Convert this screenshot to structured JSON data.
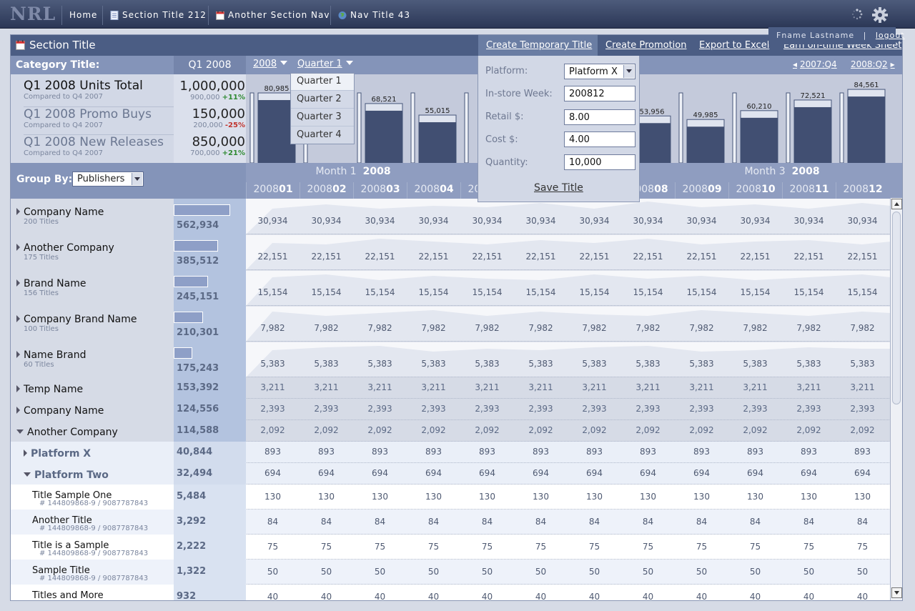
{
  "logo": "NRL",
  "nav": [
    {
      "label": "Home",
      "icon": ""
    },
    {
      "label": "Section Title 212",
      "icon": "document-icon"
    },
    {
      "label": "Another Section Nav",
      "icon": "calendar-icon"
    },
    {
      "label": "Nav Title 43",
      "icon": "globe-icon"
    }
  ],
  "user": {
    "name": "Fname Lastname",
    "separator": "|",
    "logout": "logout"
  },
  "section": {
    "title": "Section Title",
    "actions": [
      "Create Temporary Title",
      "Create Promotion",
      "Export to Excel",
      "Earn on-time Week Sheet"
    ]
  },
  "category": {
    "label": "Category Title:",
    "period": "Q1 2008",
    "year_dd": "2008",
    "quarter_dd": "Quarter 1",
    "prev": "2007:Q4",
    "next": "2008:Q2"
  },
  "quarter_menu": [
    "Quarter 1",
    "Quarter 2",
    "Quarter 3",
    "Quarter 4"
  ],
  "summary": [
    {
      "title": "Q1 2008 Units Total",
      "sub": "Compared to Q4 2007",
      "value": "1,000,000",
      "cmp": "900,000",
      "delta": "+11%",
      "dir": "up"
    },
    {
      "title": "Q1 2008 Promo Buys",
      "sub": "Compared to Q4 2007",
      "value": "150,000",
      "cmp": "200,000",
      "delta": "-25%",
      "dir": "down"
    },
    {
      "title": "Q1 2008 New Releases",
      "sub": "Compared to Q4 2007",
      "value": "850,000",
      "cmp": "700,000",
      "delta": "+21%",
      "dir": "up"
    }
  ],
  "bar_labels": [
    "80,985",
    "68,521",
    "55,015",
    "53,956",
    "49,985",
    "60,210",
    "72,521",
    "84,561"
  ],
  "group": {
    "label": "Group By:",
    "value": "Publishers"
  },
  "months": [
    {
      "name": "Month 1",
      "year": "2008"
    },
    {
      "name": "Month 3",
      "year": "2008"
    }
  ],
  "weeks_prefix": "2008",
  "weeks": [
    "01",
    "02",
    "03",
    "04",
    "05",
    "06",
    "07",
    "08",
    "09",
    "10",
    "11",
    "12"
  ],
  "popup": {
    "platform_label": "Platform:",
    "platform": "Platform X",
    "week_label": "In-store Week:",
    "week": "200812",
    "retail_label": "Retail $:",
    "retail": "8.00",
    "cost_label": "Cost $:",
    "cost": "4.00",
    "qty_label": "Quantity:",
    "qty": "10,000",
    "save": "Save Title"
  },
  "rows": [
    {
      "title": "Company Name",
      "sub": "200 Titles",
      "total": "562,934",
      "val": "30,934",
      "type": "big",
      "bar": 0.9
    },
    {
      "title": "Another Company",
      "sub": "175 Titles",
      "total": "385,512",
      "val": "22,151",
      "type": "big",
      "bar": 0.7
    },
    {
      "title": "Brand Name",
      "sub": "156 Titles",
      "total": "245,151",
      "val": "15,154",
      "type": "big",
      "bar": 0.55
    },
    {
      "title": "Company Brand Name",
      "sub": "100 Titles",
      "total": "210,301",
      "val": "7,982",
      "type": "big",
      "bar": 0.47
    },
    {
      "title": "Name Brand",
      "sub": "60 Titles",
      "total": "175,243",
      "val": "5,383",
      "type": "big",
      "bar": 0.3
    },
    {
      "title": "Temp Name",
      "total": "153,392",
      "val": "3,211",
      "type": "small"
    },
    {
      "title": "Company Name",
      "total": "124,556",
      "val": "2,393",
      "type": "small"
    },
    {
      "title": "Another Company",
      "total": "114,588",
      "val": "2,092",
      "type": "open"
    },
    {
      "title": "Platform X",
      "total": "40,844",
      "val": "893",
      "type": "platform"
    },
    {
      "title": "Platform Two",
      "total": "32,494",
      "val": "694",
      "type": "platform-open"
    },
    {
      "title": "Title Sample One",
      "sub": "# 144809868-9  /  9087787843",
      "total": "5,484",
      "val": "130",
      "type": "item"
    },
    {
      "title": "Another Title",
      "sub": "# 144809868-9  /  9087787843",
      "total": "3,292",
      "val": "84",
      "type": "item"
    },
    {
      "title": "Title is a Sample",
      "sub": "# 144809868-9  /  9087787843",
      "total": "2,222",
      "val": "75",
      "type": "item"
    },
    {
      "title": "Sample Title",
      "sub": "# 144809868-9  /  9087787843",
      "total": "1,322",
      "val": "50",
      "type": "item"
    },
    {
      "title": "Titles and More",
      "sub": "# 144809868-9  /  9087787843",
      "total": "932",
      "val": "40",
      "type": "item"
    }
  ],
  "colors": {
    "header": "#4b5d84",
    "accent": "#3f4c6e",
    "up": "#2f8a32",
    "down": "#c0342e"
  }
}
